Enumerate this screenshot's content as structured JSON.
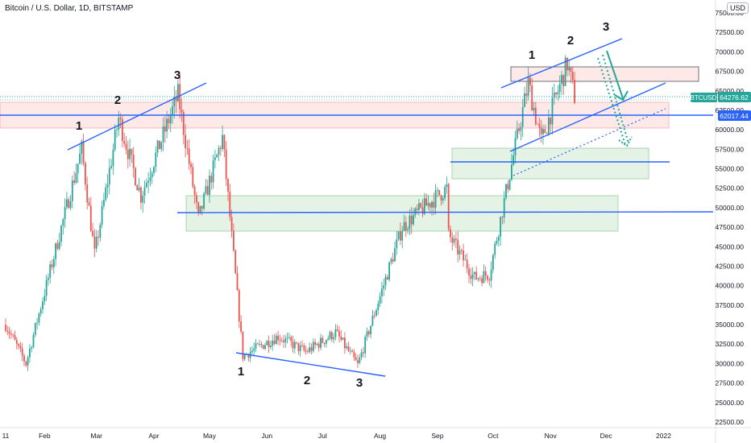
{
  "header": {
    "title": "Bitcoin / U.S. Dollar, 1D, BITSTAMP",
    "currency": "USD"
  },
  "price_tags": [
    {
      "label": "BTCUSD",
      "value": "64276.62",
      "color": "#26a69a"
    },
    {
      "value": "62017.44",
      "color": "#2962ff"
    }
  ],
  "wave_labels": {
    "left_top": [
      "1",
      "2",
      "3"
    ],
    "bottom": [
      "1",
      "2",
      "3"
    ],
    "right_top": [
      "1",
      "2",
      "3"
    ]
  },
  "colors": {
    "up": "#26a69a",
    "down": "#ef5350",
    "trendline": "#2962ff",
    "red_zone": "#ef5350",
    "green_zone": "#4caf50",
    "arrow": "#26a69a"
  },
  "chart_data": {
    "type": "candlestick",
    "title": "Bitcoin / U.S. Dollar, 1D, BITSTAMP",
    "x_tick_labels": [
      "11",
      "Feb",
      "Mar",
      "Apr",
      "May",
      "Jun",
      "Jul",
      "Aug",
      "Sep",
      "Oct",
      "Nov",
      "Dec",
      "2022"
    ],
    "y_tick_labels": [
      "22500.00",
      "25000.00",
      "27500.00",
      "30000.00",
      "32500.00",
      "35000.00",
      "37500.00",
      "40000.00",
      "42500.00",
      "45000.00",
      "47500.00",
      "50000.00",
      "52500.00",
      "55000.00",
      "57500.00",
      "60000.00",
      "62500.00",
      "65000.00",
      "67500.00",
      "70000.00",
      "72500.00",
      "75000.00"
    ],
    "ylim": [
      22000,
      76000
    ],
    "last_price": 64276.62,
    "level_price": 62017.44,
    "key_points": [
      {
        "date": "2021-01-11",
        "price": 35000
      },
      {
        "date": "2021-01-22",
        "price": 30000
      },
      {
        "date": "2021-02-21",
        "price": 57500
      },
      {
        "date": "2021-02-28",
        "price": 44000
      },
      {
        "date": "2021-03-13",
        "price": 61500
      },
      {
        "date": "2021-03-25",
        "price": 51500
      },
      {
        "date": "2021-04-14",
        "price": 64500
      },
      {
        "date": "2021-04-25",
        "price": 48500
      },
      {
        "date": "2021-05-08",
        "price": 59000
      },
      {
        "date": "2021-05-19",
        "price": 31000
      },
      {
        "date": "2021-06-07",
        "price": 33500
      },
      {
        "date": "2021-06-22",
        "price": 31500
      },
      {
        "date": "2021-07-08",
        "price": 34000
      },
      {
        "date": "2021-07-20",
        "price": 29800
      },
      {
        "date": "2021-08-13",
        "price": 47500
      },
      {
        "date": "2021-08-22",
        "price": 49500
      },
      {
        "date": "2021-09-06",
        "price": 52500
      },
      {
        "date": "2021-09-07",
        "price": 46500
      },
      {
        "date": "2021-09-21",
        "price": 41000
      },
      {
        "date": "2021-09-29",
        "price": 41500
      },
      {
        "date": "2021-10-20",
        "price": 66000
      },
      {
        "date": "2021-10-27",
        "price": 58500
      },
      {
        "date": "2021-11-10",
        "price": 68500
      },
      {
        "date": "2021-11-14",
        "price": 64276
      }
    ]
  }
}
